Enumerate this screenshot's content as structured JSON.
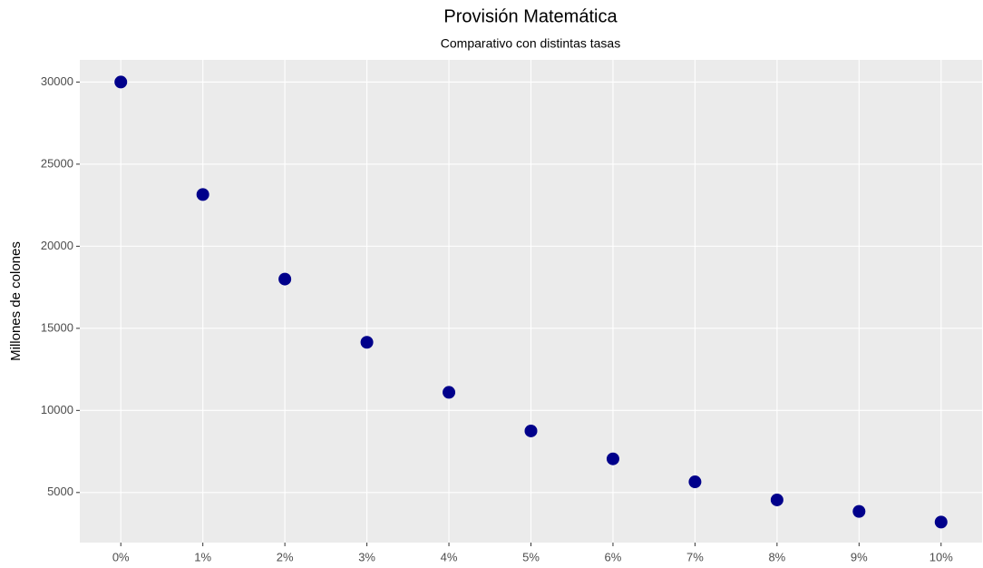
{
  "chart_data": {
    "type": "scatter",
    "title": "Provisión Matemática",
    "subtitle": "Comparativo con distintas tasas",
    "y_label": "Millones de colones",
    "categories": [
      "0%",
      "1%",
      "2%",
      "3%",
      "4%",
      "5%",
      "6%",
      "7%",
      "8%",
      "9%",
      "10%"
    ],
    "values": [
      30000,
      23150,
      18000,
      14150,
      11100,
      8750,
      7050,
      5650,
      4550,
      3850,
      3200
    ],
    "color": "#00008b",
    "ylim": [
      1950,
      31350
    ],
    "yticks": [
      5000,
      10000,
      15000,
      20000,
      25000,
      30000
    ],
    "grid": true
  }
}
